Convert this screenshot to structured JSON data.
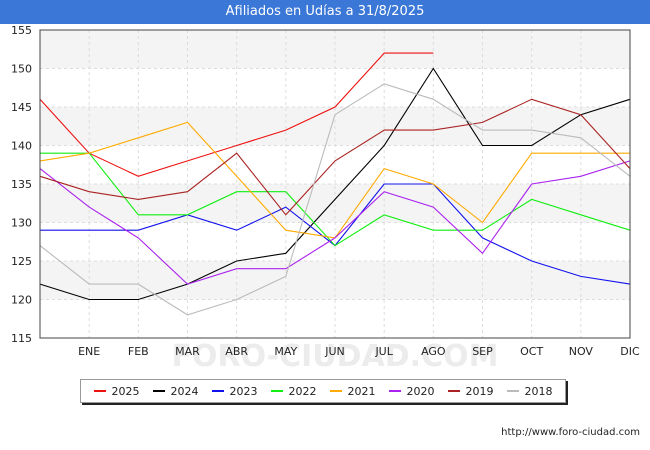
{
  "header": {
    "title": "Afiliados en Udías a 31/8/2025"
  },
  "footer": {
    "url": "http://www.foro-ciudad.com"
  },
  "watermark": "FORO-CIUDAD.COM",
  "chart_data": {
    "type": "line",
    "title": "Afiliados en Udías a 31/8/2025",
    "xlabel": "",
    "ylabel": "",
    "categories": [
      "",
      "ENE",
      "FEB",
      "MAR",
      "ABR",
      "MAY",
      "JUN",
      "JUL",
      "AGO",
      "SEP",
      "OCT",
      "NOV",
      "DIC"
    ],
    "ylim": [
      115,
      155
    ],
    "yticks": [
      115,
      120,
      125,
      130,
      135,
      140,
      145,
      150,
      155
    ],
    "grid": true,
    "legend_position": "bottom",
    "series": [
      {
        "name": "2025",
        "color": "#ee1111",
        "values": [
          146,
          139,
          136,
          138,
          140,
          142,
          145,
          152,
          152,
          null,
          null,
          null,
          null
        ]
      },
      {
        "name": "2024",
        "color": "#000000",
        "values": [
          122,
          120,
          120,
          122,
          125,
          126,
          133,
          140,
          150,
          140,
          140,
          144,
          146
        ]
      },
      {
        "name": "2023",
        "color": "#1111ee",
        "values": [
          129,
          129,
          129,
          131,
          129,
          132,
          127,
          135,
          135,
          128,
          125,
          123,
          122
        ]
      },
      {
        "name": "2022",
        "color": "#11ee11",
        "values": [
          139,
          139,
          131,
          131,
          134,
          134,
          127,
          131,
          129,
          129,
          133,
          131,
          129
        ]
      },
      {
        "name": "2021",
        "color": "#ffaa00",
        "values": [
          138,
          139,
          141,
          143,
          136,
          129,
          128,
          137,
          135,
          130,
          139,
          139,
          139
        ]
      },
      {
        "name": "2020",
        "color": "#aa22ee",
        "values": [
          137,
          132,
          128,
          122,
          124,
          124,
          128,
          134,
          132,
          126,
          135,
          136,
          138
        ]
      },
      {
        "name": "2019",
        "color": "#aa2222",
        "values": [
          136,
          134,
          133,
          134,
          139,
          131,
          138,
          142,
          142,
          143,
          146,
          144,
          137
        ]
      },
      {
        "name": "2018",
        "color": "#bbbbbb",
        "values": [
          127,
          122,
          122,
          118,
          120,
          123,
          144,
          148,
          146,
          142,
          142,
          141,
          136
        ]
      }
    ]
  }
}
